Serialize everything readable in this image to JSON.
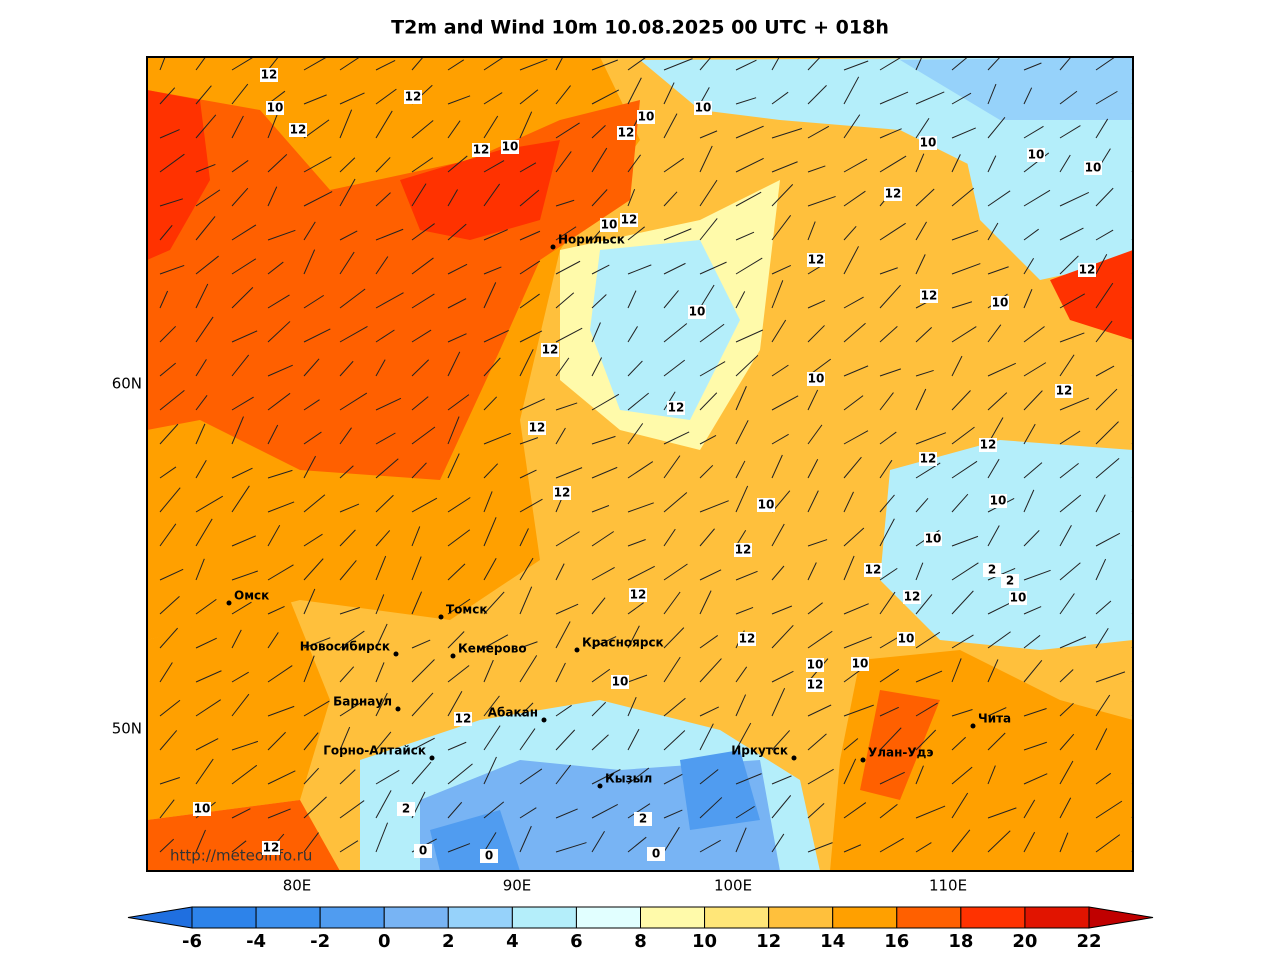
{
  "title": "T2m and Wind 10m 10.08.2025 00 UTC + 018h",
  "map": {
    "lat_labels": [
      "60N",
      "50N"
    ],
    "lon_labels": [
      "80E",
      "90E",
      "100E",
      "110E"
    ],
    "cities": [
      "Норильск",
      "Омск",
      "Томск",
      "Новосибирск",
      "Кемерово",
      "Красноярск",
      "Барнаул",
      "Абакан",
      "Горно-Алтайск",
      "Кызыл",
      "Иркутск",
      "Улан-Удэ",
      "Чита"
    ],
    "contour_labels": [
      12,
      10,
      12,
      12,
      12,
      10,
      10,
      12,
      10,
      12,
      10,
      12,
      10,
      10,
      12,
      12,
      10,
      12,
      12,
      10,
      12,
      10,
      12,
      12,
      12,
      12,
      10,
      12,
      10,
      10,
      12,
      10,
      12,
      12,
      10,
      10,
      2,
      2,
      0,
      0,
      2,
      2,
      0,
      10,
      12,
      10,
      12,
      12,
      10,
      10,
      12,
      12
    ],
    "url": "http://meteoinfo.ru"
  },
  "colorbar": {
    "ticks": [
      -6,
      -4,
      -2,
      0,
      2,
      4,
      6,
      8,
      10,
      12,
      14,
      16,
      18,
      20,
      22
    ],
    "colors": [
      "#1f6fe0",
      "#2d83ea",
      "#3c90ee",
      "#509cf0",
      "#78b4f4",
      "#96d2fa",
      "#b4eefa",
      "#e1ffff",
      "#fffaaa",
      "#ffe678",
      "#ffc03c",
      "#ffa000",
      "#ff6000",
      "#ff3200",
      "#e11400",
      "#c00000"
    ]
  }
}
